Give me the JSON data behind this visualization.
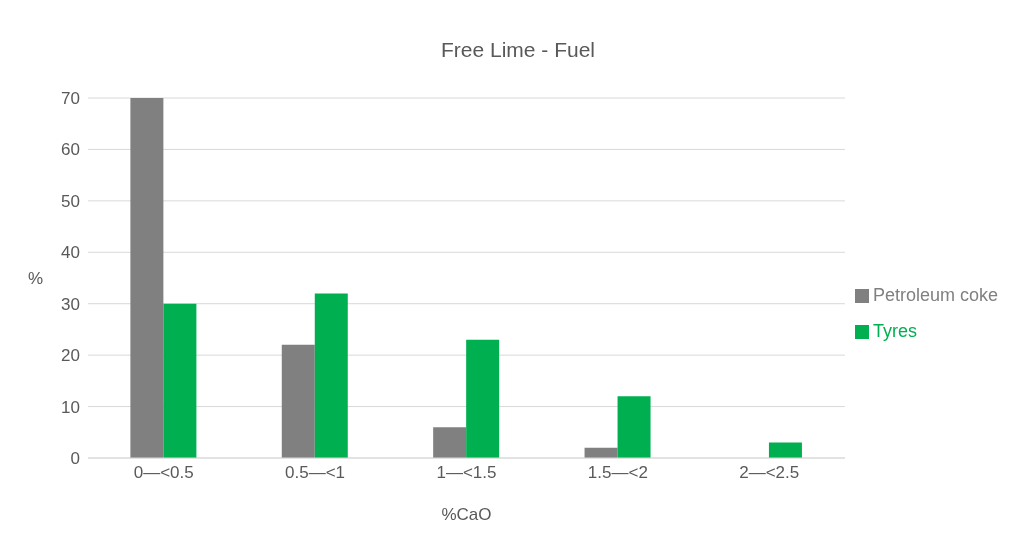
{
  "chart_data": {
    "type": "bar",
    "title": "Free Lime - Fuel",
    "xlabel": "%CaO",
    "ylabel": "%",
    "categories": [
      "0—<0.5",
      "0.5—<1",
      "1—<1.5",
      "1.5—<2",
      "2—<2.5"
    ],
    "series": [
      {
        "name": "Petroleum coke",
        "color": "#808080",
        "values": [
          70,
          22,
          6,
          2,
          0
        ]
      },
      {
        "name": "Tyres",
        "color": "#00b050",
        "values": [
          30,
          32,
          23,
          12,
          3
        ]
      }
    ],
    "ylim": [
      0,
      70
    ],
    "yticks": [
      0,
      10,
      20,
      30,
      40,
      50,
      60,
      70
    ],
    "grid": "y",
    "legend": "right"
  }
}
